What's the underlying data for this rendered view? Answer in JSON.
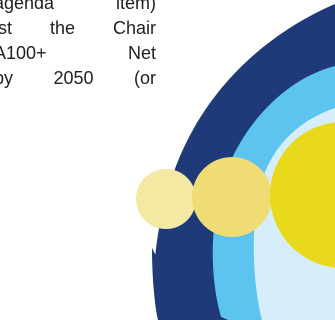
{
  "document": {
    "text_lines": [
      "agenda item)",
      "ist the Chair",
      "A100+ Net",
      "by 2050 (or"
    ]
  },
  "graphic": {
    "colors": {
      "navy": "#1e3a78",
      "sky_blue": "#5cc4ef",
      "pale_blue": "#d6eefa",
      "yellow": "#e9d91c",
      "light_yellow": "#efdc75",
      "pale_yellow": "#f4e9a3",
      "connector": "#9fd8f2"
    }
  }
}
